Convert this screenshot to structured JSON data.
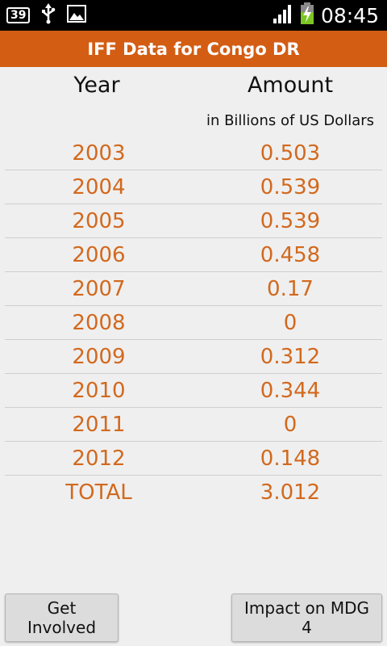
{
  "status_bar": {
    "notification_count": "39",
    "time": "08:45",
    "icons": [
      "notification-count-icon",
      "usb-icon",
      "image-icon",
      "signal-icon",
      "battery-charging-icon"
    ]
  },
  "title_bar": {
    "title": "IFF Data for Congo DR",
    "background_color": "#d35d13"
  },
  "table": {
    "header_year": "Year",
    "header_amount": "Amount",
    "units": "in Billions of US Dollars",
    "value_color": "#d2691e",
    "rows": [
      {
        "year": "2003",
        "amount": "0.503"
      },
      {
        "year": "2004",
        "amount": "0.539"
      },
      {
        "year": "2005",
        "amount": "0.539"
      },
      {
        "year": "2006",
        "amount": "0.458"
      },
      {
        "year": "2007",
        "amount": "0.17"
      },
      {
        "year": "2008",
        "amount": "0"
      },
      {
        "year": "2009",
        "amount": "0.312"
      },
      {
        "year": "2010",
        "amount": "0.344"
      },
      {
        "year": "2011",
        "amount": "0"
      },
      {
        "year": "2012",
        "amount": "0.148"
      }
    ],
    "total_label": "TOTAL",
    "total_amount": "3.012"
  },
  "buttons": {
    "get_involved": "Get Involved",
    "impact": "Impact on MDG 4"
  }
}
